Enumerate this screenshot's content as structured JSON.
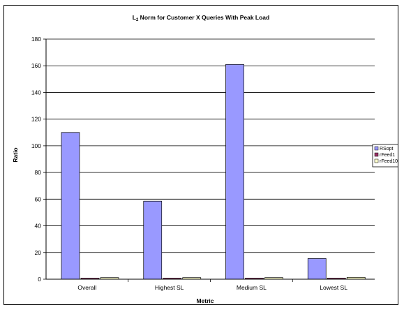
{
  "chart_data": {
    "type": "bar",
    "title": "L",
    "title_subscript": "2",
    "title_rest": " Norm for Customer X Queries With Peak Load",
    "xlabel": "Metric",
    "ylabel": "Ratio",
    "categories": [
      "Overall",
      "Highest SL",
      "Medium SL",
      "Lowest SL"
    ],
    "series": [
      {
        "name": "RSopt",
        "values": [
          110,
          58.5,
          161,
          15.5
        ],
        "color": "#9999ff"
      },
      {
        "name": "rFeed1",
        "values": [
          0.8,
          0.8,
          0.8,
          0.8
        ],
        "color": "#993366"
      },
      {
        "name": "rFeed10",
        "values": [
          1.2,
          1.2,
          1.2,
          1.4
        ],
        "color": "#ffffcc"
      }
    ],
    "ylim": [
      0,
      180
    ],
    "yticks": [
      "0",
      "20",
      "40",
      "60",
      "80",
      "100",
      "120",
      "140",
      "160",
      "180"
    ],
    "grid": true,
    "legend_position": "right"
  }
}
